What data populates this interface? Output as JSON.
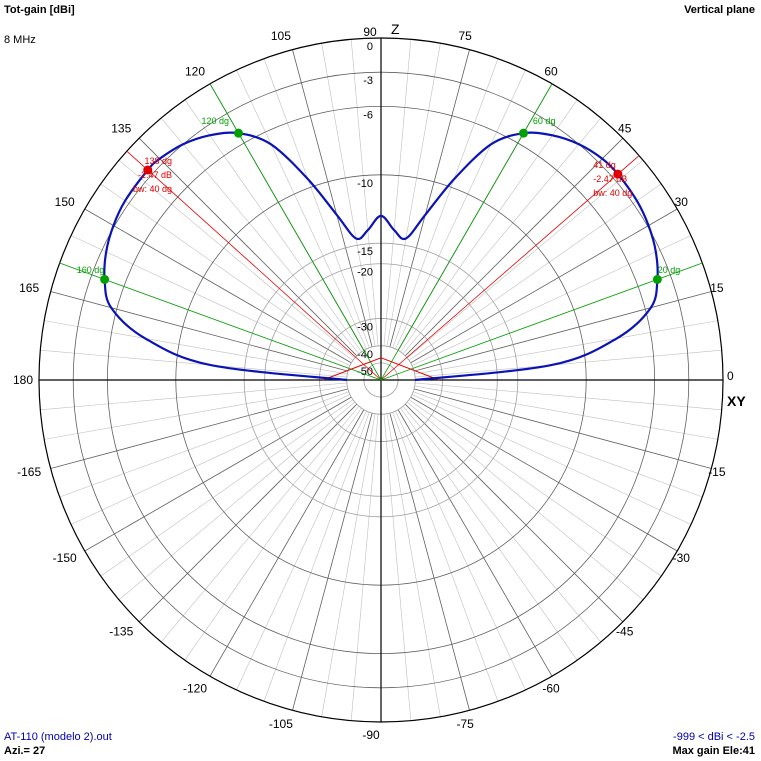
{
  "header": {
    "title_left": "Tot-gain [dBi]",
    "frequency": "8 MHz",
    "title_right": "Vertical plane"
  },
  "footer": {
    "file": "AT-110 (modelo 2).out",
    "azimuth": "Azi.= 27",
    "gain_range": "-999 < dBi < -2.5",
    "max_gain": "Max gain Ele:41"
  },
  "colors": {
    "pattern": "#0a14b4",
    "green": "#00a000",
    "red": "#e00000",
    "grid": "#808080",
    "axis": "#000000"
  },
  "chart_data": {
    "type": "polar",
    "title": "Tot-gain [dBi]",
    "plane": "Vertical plane",
    "axis_labels": {
      "top": "Z",
      "right": "XY"
    },
    "angle_tick_step_deg": 15,
    "angle_tick_labels": [
      {
        "angle": 0,
        "label": "0"
      },
      {
        "angle": 15,
        "label": "15"
      },
      {
        "angle": 30,
        "label": "30"
      },
      {
        "angle": 45,
        "label": "45"
      },
      {
        "angle": 60,
        "label": "60"
      },
      {
        "angle": 75,
        "label": "75"
      },
      {
        "angle": 90,
        "label": "90"
      },
      {
        "angle": 105,
        "label": "105"
      },
      {
        "angle": 120,
        "label": "120"
      },
      {
        "angle": 135,
        "label": "135"
      },
      {
        "angle": 150,
        "label": "150"
      },
      {
        "angle": 165,
        "label": "165"
      },
      {
        "angle": 180,
        "label": "180"
      },
      {
        "angle": -165,
        "label": "-165"
      },
      {
        "angle": -150,
        "label": "-150"
      },
      {
        "angle": -135,
        "label": "-135"
      },
      {
        "angle": -120,
        "label": "-120"
      },
      {
        "angle": -105,
        "label": "-105"
      },
      {
        "angle": -90,
        "label": "-90"
      },
      {
        "angle": -75,
        "label": "-75"
      },
      {
        "angle": -60,
        "label": "-60"
      },
      {
        "angle": -45,
        "label": "-45"
      },
      {
        "angle": -30,
        "label": "-30"
      },
      {
        "angle": -15,
        "label": "-15"
      }
    ],
    "radial_rings": [
      {
        "r": 1.0,
        "label": "0"
      },
      {
        "r": 0.9,
        "label": "-3"
      },
      {
        "r": 0.8,
        "label": "-6"
      },
      {
        "r": 0.6,
        "label": "-10"
      },
      {
        "r": 0.4,
        "label": "-15"
      },
      {
        "r": 0.34,
        "label": "-20"
      },
      {
        "r": 0.18,
        "label": "-30"
      },
      {
        "r": 0.1,
        "label": "-40"
      },
      {
        "r": 0.05,
        "label": "-50"
      }
    ],
    "series": [
      {
        "points": [
          [
            0,
            -40
          ],
          [
            5,
            -12.5
          ],
          [
            10,
            -8.0
          ],
          [
            15,
            -5.5
          ],
          [
            20,
            -4.2
          ],
          [
            25,
            -3.4
          ],
          [
            30,
            -2.9
          ],
          [
            35,
            -2.6
          ],
          [
            41,
            -2.47
          ],
          [
            45,
            -2.55
          ],
          [
            50,
            -3.0
          ],
          [
            55,
            -3.8
          ],
          [
            60,
            -5.0
          ],
          [
            65,
            -6.8
          ],
          [
            70,
            -9.5
          ],
          [
            75,
            -12.5
          ],
          [
            80,
            -14.5
          ],
          [
            85,
            -14.0
          ],
          [
            90,
            -13.0
          ],
          [
            95,
            -14.0
          ],
          [
            100,
            -14.5
          ],
          [
            105,
            -12.5
          ],
          [
            110,
            -9.5
          ],
          [
            115,
            -6.8
          ],
          [
            120,
            -5.0
          ],
          [
            125,
            -3.8
          ],
          [
            130,
            -3.0
          ],
          [
            135,
            -2.55
          ],
          [
            138,
            -2.47
          ],
          [
            145,
            -2.6
          ],
          [
            150,
            -2.9
          ],
          [
            155,
            -3.4
          ],
          [
            160,
            -4.2
          ],
          [
            165,
            -5.5
          ],
          [
            170,
            -8.0
          ],
          [
            175,
            -12.5
          ],
          [
            180,
            -40
          ]
        ]
      }
    ],
    "markers": [
      {
        "angle": 41,
        "color": "red",
        "labels": [
          "41 dg",
          "-2.47 dB",
          "bw: 40 dg"
        ]
      },
      {
        "angle": 138,
        "color": "red",
        "labels": [
          "138 dg",
          "-2.47 dB",
          "bw: 40 dg"
        ]
      },
      {
        "angle": 20,
        "color": "green",
        "labels": [
          "20 dg"
        ]
      },
      {
        "angle": 60,
        "color": "green",
        "labels": [
          "60 dg"
        ]
      },
      {
        "angle": 120,
        "color": "green",
        "labels": [
          "120 dg"
        ]
      },
      {
        "angle": 160,
        "color": "green",
        "labels": [
          "160 dg"
        ]
      }
    ]
  }
}
